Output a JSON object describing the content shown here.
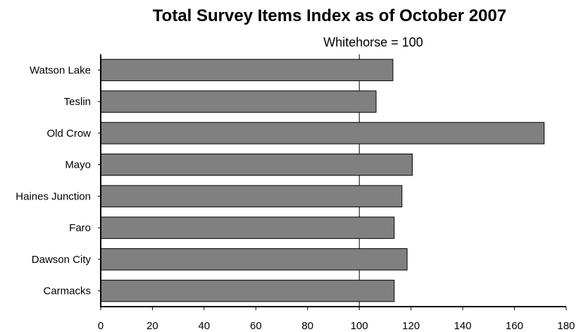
{
  "chart_data": {
    "type": "bar",
    "orientation": "horizontal",
    "title": "Total Survey Items Index as of October 2007",
    "subtitle": "Whitehorse = 100",
    "categories": [
      "Watson Lake",
      "Teslin",
      "Old Crow",
      "Mayo",
      "Haines Junction",
      "Faro",
      "Dawson City",
      "Carmacks"
    ],
    "values": [
      113,
      106.5,
      171.5,
      120.5,
      116.5,
      113.5,
      118.5,
      113.5
    ],
    "xlim": [
      0,
      180
    ],
    "xticks": [
      0,
      20,
      40,
      60,
      80,
      100,
      120,
      140,
      160,
      180
    ],
    "reference_line": 100,
    "bar_color": "#808080",
    "bar_outline": "#000000",
    "grid": false,
    "legend": "none"
  }
}
